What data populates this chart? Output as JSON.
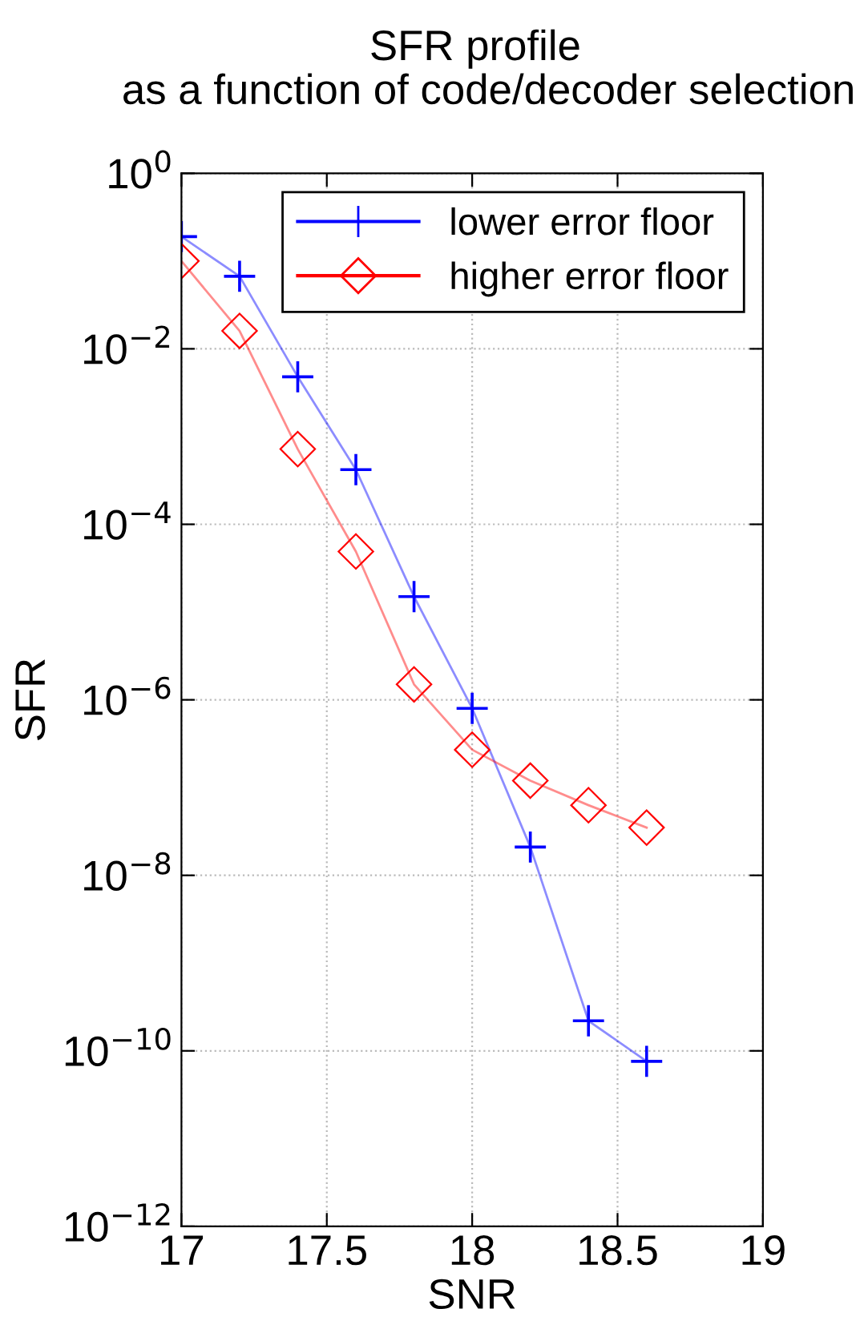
{
  "chart_data": {
    "type": "line",
    "title": "SFR profile",
    "subtitle": "as a function of code/decoder selection",
    "xlabel": "SNR",
    "ylabel": "SFR",
    "x": [
      17,
      17.2,
      17.4,
      17.6,
      17.8,
      18,
      18.2,
      18.4,
      18.6
    ],
    "series": [
      {
        "name": "lower error floor",
        "color": "#0000ff",
        "marker": "cross",
        "values": [
          0.19,
          0.067,
          0.0048,
          0.00042,
          1.5e-05,
          8e-07,
          2.1e-08,
          2.2e-10,
          7.6e-11
        ]
      },
      {
        "name": "higher error floor",
        "color": "#ff0000",
        "marker": "diamond",
        "values": [
          0.1,
          0.016,
          0.00072,
          4.9e-05,
          1.5e-06,
          2.7e-07,
          1.2e-07,
          6.3e-08,
          3.5e-08
        ]
      }
    ],
    "log": "y",
    "xlim": [
      17,
      19
    ],
    "xticks": [
      17,
      17.5,
      18,
      18.5,
      19
    ],
    "ylim": [
      1e-12,
      1
    ],
    "yticks": [
      {
        "value": 1e-12,
        "label": "10$^{−12}$"
      },
      {
        "value": 1e-10,
        "label": "10$^{−10}$"
      },
      {
        "value": 1e-08,
        "label": "10$^{−8}$"
      },
      {
        "value": 1e-06,
        "label": "10$^{−6}$"
      },
      {
        "value": 0.0001,
        "label": "10$^{−4}$"
      },
      {
        "value": 0.01,
        "label": "10$^{−2}$"
      },
      {
        "value": 1,
        "label": "10$^{0}$"
      }
    ],
    "grid": true,
    "legend": "top right",
    "line_style": "solid"
  }
}
